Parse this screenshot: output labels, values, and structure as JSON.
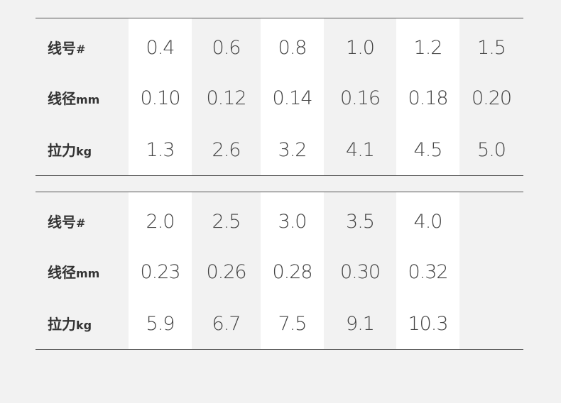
{
  "tables": [
    {
      "rows": [
        {
          "label": "线号",
          "unit": "#",
          "cells": [
            "0.4",
            "0.6",
            "0.8",
            "1.0",
            "1.2",
            "1.5"
          ]
        },
        {
          "label": "线径",
          "unit": "mm",
          "cells": [
            "0.10",
            "0.12",
            "0.14",
            "0.16",
            "0.18",
            "0.20"
          ]
        },
        {
          "label": "拉力",
          "unit": "kg",
          "cells": [
            "1.3",
            "2.6",
            "3.2",
            "4.1",
            "4.5",
            "5.0"
          ]
        }
      ]
    },
    {
      "rows": [
        {
          "label": "线号",
          "unit": "#",
          "cells": [
            "2.0",
            "2.5",
            "3.0",
            "3.5",
            "4.0"
          ]
        },
        {
          "label": "线径",
          "unit": "mm",
          "cells": [
            "0.23",
            "0.26",
            "0.28",
            "0.30",
            "0.32"
          ]
        },
        {
          "label": "拉力",
          "unit": "kg",
          "cells": [
            "5.9",
            "6.7",
            "7.5",
            "9.1",
            "10.3"
          ]
        }
      ]
    }
  ]
}
